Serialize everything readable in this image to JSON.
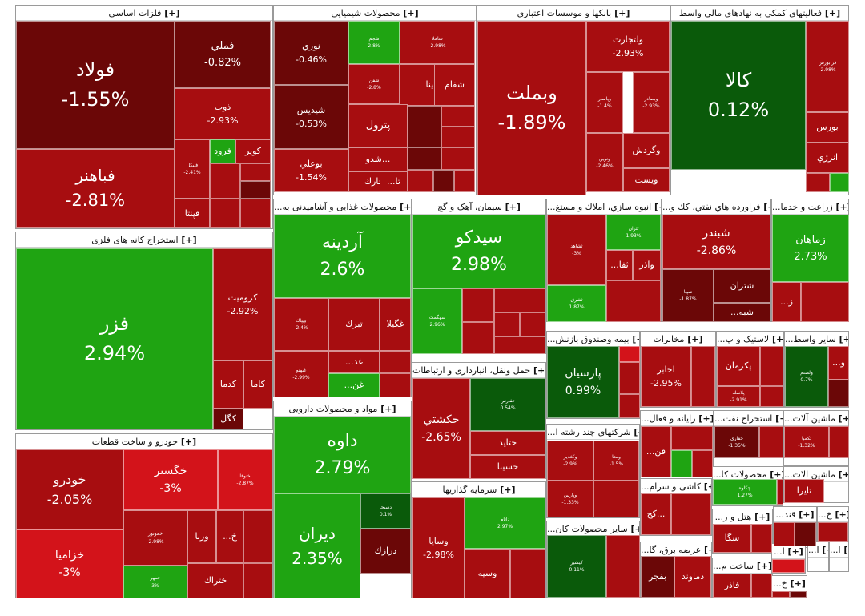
{
  "chart_data": {
    "type": "treemap",
    "colors": {
      "dark_red": "#6b0707",
      "red": "#a70d10",
      "bright_red": "#d3131a",
      "green": "#1fa412",
      "dark_green": "#0a5a0a"
    },
    "sectors": [
      {
        "name": "فلزات اساسی",
        "plus": "[+]",
        "tiles": [
          {
            "symbol": "فولاد",
            "change": "-1.55%"
          },
          {
            "symbol": "فملي",
            "change": "-0.82%"
          },
          {
            "symbol": "ذوب",
            "change": "-2.93%"
          },
          {
            "symbol": "فباهنر",
            "change": "-2.81%"
          },
          {
            "symbol": "فرود",
            "change": ""
          },
          {
            "symbol": "كوير",
            "change": ""
          },
          {
            "symbol": "فنيكل",
            "change": "-2.41%"
          },
          {
            "symbol": "فپنتا",
            "change": ""
          }
        ]
      },
      {
        "name": "محصولات شیمیایی",
        "plus": "[+]",
        "tiles": [
          {
            "symbol": "نوري",
            "change": "-0.46%"
          },
          {
            "symbol": "شجم",
            "change": "2.8%"
          },
          {
            "symbol": "شاملا",
            "change": "-2.98%"
          },
          {
            "symbol": "شپديس",
            "change": "-0.53%"
          },
          {
            "symbol": "شفن",
            "change": "-2.8%"
          },
          {
            "symbol": "شسينا",
            "change": ""
          },
          {
            "symbol": "شفام",
            "change": ""
          },
          {
            "symbol": "پترول",
            "change": ""
          },
          {
            "symbol": "بوعلي",
            "change": "-1.54%"
          },
          {
            "symbol": "شدو...",
            "change": ""
          },
          {
            "symbol": "شخارك",
            "change": ""
          },
          {
            "symbol": "...تا",
            "change": ""
          }
        ]
      },
      {
        "name": "بانکها و موسسات اعتباری",
        "plus": "[+]",
        "tiles": [
          {
            "symbol": "وبملت",
            "change": "-1.89%"
          },
          {
            "symbol": "ولتجارت",
            "change": "-2.93%"
          },
          {
            "symbol": "وبصادر",
            "change": "-2.93%"
          },
          {
            "symbol": "وپاسار",
            "change": "-1.4%"
          },
          {
            "symbol": "وگردش",
            "change": ""
          },
          {
            "symbol": "ونوين",
            "change": "-2.46%"
          },
          {
            "symbol": "ويست",
            "change": ""
          }
        ]
      },
      {
        "name": "فعالیتهای کمکی به نهادهای مالی واسط",
        "plus": "[+]",
        "tiles": [
          {
            "symbol": "کالا",
            "change": "0.12%"
          },
          {
            "symbol": "فرابورس",
            "change": "-2.98%"
          },
          {
            "symbol": "بورس",
            "change": ""
          },
          {
            "symbol": "انرژي",
            "change": ""
          }
        ]
      },
      {
        "name": "استخراج کانه های فلزی",
        "plus": "[+]",
        "tiles": [
          {
            "symbol": "فزر",
            "change": "2.94%"
          },
          {
            "symbol": "كروميت",
            "change": "-2.92%"
          },
          {
            "symbol": "كدما",
            "change": ""
          },
          {
            "symbol": "كاما",
            "change": ""
          },
          {
            "symbol": "كگل",
            "change": ""
          }
        ]
      },
      {
        "name": "...محصولات غذایی و آشامیدنی به",
        "plus": "[+]",
        "tiles": [
          {
            "symbol": "آردينه",
            "change": "2.6%"
          },
          {
            "symbol": "بهپاك",
            "change": "-2.4%"
          },
          {
            "symbol": "تبرك",
            "change": ""
          },
          {
            "symbol": "غگيلا",
            "change": ""
          },
          {
            "symbol": "...غد",
            "change": ""
          },
          {
            "symbol": "غبهنو",
            "change": "-2.99%"
          },
          {
            "symbol": "...غن",
            "change": ""
          }
        ]
      },
      {
        "name": "سیمان، آهک و گچ",
        "plus": "[+]",
        "tiles": [
          {
            "symbol": "سيدكو",
            "change": "2.98%"
          },
          {
            "symbol": "سهگمت",
            "change": "2.96%"
          }
        ]
      },
      {
        "name": "...انبوه سازي، املاك و مستغ",
        "plus": "[+]",
        "tiles": [
          {
            "symbol": "ثشاهد",
            "change": "-3%"
          },
          {
            "symbol": "ثتران",
            "change": "1.93%"
          },
          {
            "symbol": "وآذر",
            "change": ""
          },
          {
            "symbol": "...ثفا",
            "change": ""
          },
          {
            "symbol": "ثشرق",
            "change": "1.87%"
          }
        ]
      },
      {
        "name": "...فراورده هاي نفتي، كك و",
        "plus": "[+]",
        "tiles": [
          {
            "symbol": "شبندر",
            "change": "-2.86%"
          },
          {
            "symbol": "شپنا",
            "change": "-1.87%"
          },
          {
            "symbol": "شتران",
            "change": ""
          },
          {
            "symbol": "...شبه",
            "change": ""
          }
        ]
      },
      {
        "name": "...زراعت و خدما",
        "plus": "[+]",
        "tiles": [
          {
            "symbol": "زماهان",
            "change": "2.73%"
          },
          {
            "symbol": "...ز",
            "change": ""
          }
        ]
      },
      {
        "name": "مواد و محصولات دارویی",
        "plus": "[+]",
        "tiles": [
          {
            "symbol": "داوه",
            "change": "2.79%"
          },
          {
            "symbol": "ديران",
            "change": "2.35%"
          },
          {
            "symbol": "دسبحا",
            "change": "0.1%"
          },
          {
            "symbol": "درازك",
            "change": ""
          }
        ]
      },
      {
        "name": "حمل ونقل، انبارداری و ارتباطات",
        "plus": "[+]",
        "tiles": [
          {
            "symbol": "حكشتي",
            "change": "-2.65%"
          },
          {
            "symbol": "حفارس",
            "change": "0.54%"
          },
          {
            "symbol": "حتايد",
            "change": ""
          },
          {
            "symbol": "حسينا",
            "change": ""
          }
        ]
      },
      {
        "name": "...بیمه وصندوق بازنش",
        "plus": "[+]",
        "tiles": [
          {
            "symbol": "پارسيان",
            "change": "0.99%"
          }
        ]
      },
      {
        "name": "مخابرات",
        "plus": "[+]",
        "tiles": [
          {
            "symbol": "اخابر",
            "change": "-2.95%"
          }
        ]
      },
      {
        "name": "...لاستیک و پ",
        "plus": "[+]",
        "tiles": [
          {
            "symbol": "پكرمان",
            "change": ""
          },
          {
            "symbol": "پلاسك",
            "change": "-2.91%"
          }
        ]
      },
      {
        "name": "...سایر واسط",
        "plus": "[+]",
        "tiles": [
          {
            "symbol": "ولصنم",
            "change": "0.7%"
          },
          {
            "symbol": "...و",
            "change": ""
          }
        ]
      },
      {
        "name": "خودرو و ساخت قطعات",
        "plus": "[+]",
        "tiles": [
          {
            "symbol": "خودرو",
            "change": "-2.05%"
          },
          {
            "symbol": "خگستر",
            "change": "-3%"
          },
          {
            "symbol": "خنوفا",
            "change": "-2.87%"
          },
          {
            "symbol": "خزاميا",
            "change": "-3%"
          },
          {
            "symbol": "خمهر",
            "change": "3%"
          },
          {
            "symbol": "خموتور",
            "change": "-2.98%"
          },
          {
            "symbol": "ورنا",
            "change": ""
          },
          {
            "symbol": "...خ",
            "change": ""
          },
          {
            "symbol": "ختراك",
            "change": ""
          }
        ]
      },
      {
        "name": "سرمایه گذاریها",
        "plus": "[+]",
        "tiles": [
          {
            "symbol": "داتام",
            "change": "2.97%"
          },
          {
            "symbol": "وساپا",
            "change": "-2.98%"
          },
          {
            "symbol": "وسپه",
            "change": ""
          }
        ]
      },
      {
        "name": "...شرکتهای چند رشته ا",
        "plus": "[+]",
        "tiles": [
          {
            "symbol": "وكغدير",
            "change": "-2.9%"
          },
          {
            "symbol": "ومعا",
            "change": "-1.5%"
          },
          {
            "symbol": "وپارس",
            "change": "-1.33%"
          }
        ]
      },
      {
        "name": "...رایانه و فعال",
        "plus": "[+]",
        "tiles": [
          {
            "symbol": "...فن",
            "change": ""
          }
        ]
      },
      {
        "name": "...استخراج نفت",
        "plus": "[+]",
        "tiles": [
          {
            "symbol": "حفاري",
            "change": "-1.35%"
          }
        ]
      },
      {
        "name": "...ماشین آلات",
        "plus": "[+]",
        "tiles": [
          {
            "symbol": "تكمبا",
            "change": "-1.32%"
          }
        ]
      },
      {
        "name": "...کاشی و سرام",
        "plus": "[+]",
        "tiles": [
          {
            "symbol": "كح...",
            "change": ""
          }
        ]
      },
      {
        "name": "...محصولات کا",
        "plus": "[+]",
        "tiles": [
          {
            "symbol": "چكاوه",
            "change": "1.27%"
          }
        ]
      },
      {
        "name": "...ماشین الات",
        "plus": "[+]",
        "tiles": [
          {
            "symbol": "تايرا",
            "change": ""
          }
        ]
      },
      {
        "name": "...سایر محصولات کان",
        "plus": "[+]",
        "tiles": [
          {
            "symbol": "كيشير",
            "change": "0.11%"
          }
        ]
      },
      {
        "name": "...عرضه برق، گا",
        "plus": "[+]",
        "tiles": [
          {
            "symbol": "دماوند",
            "change": ""
          },
          {
            "symbol": "بفجر",
            "change": ""
          }
        ]
      },
      {
        "name": "...هتل و ر",
        "plus": "[+]",
        "tiles": [
          {
            "symbol": "سگا",
            "change": ""
          }
        ]
      },
      {
        "name": "...ساخت م",
        "plus": "[+]",
        "tiles": [
          {
            "symbol": "فاذر",
            "change": ""
          }
        ]
      },
      {
        "name": "...قند",
        "plus": "[+]",
        "tiles": []
      },
      {
        "name": "...خ",
        "plus": "[+]",
        "tiles": []
      },
      {
        "name": "...ا",
        "plus": "[+]",
        "tiles": []
      },
      {
        "name": "...ا",
        "plus": "[+]",
        "tiles": []
      },
      {
        "name": "...ا",
        "plus": "[+]",
        "tiles": []
      },
      {
        "name": "...خ",
        "plus": "[+]",
        "tiles": []
      }
    ]
  }
}
